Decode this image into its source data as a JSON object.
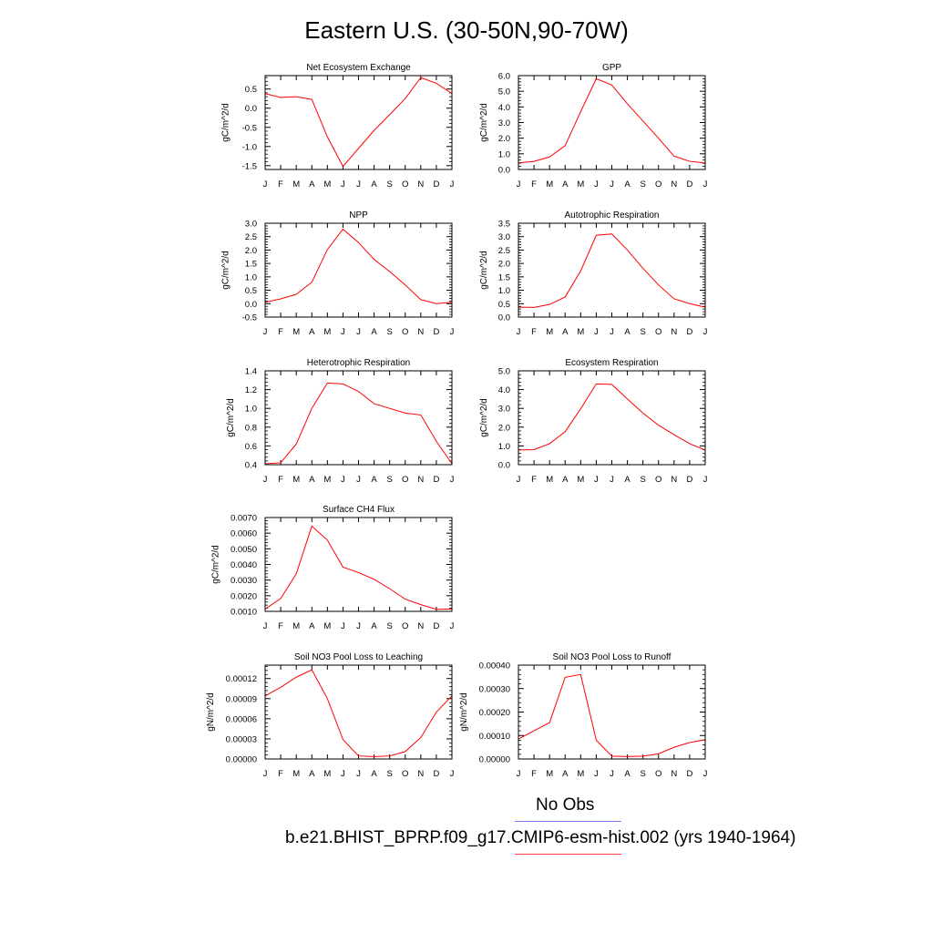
{
  "title": "Eastern U.S. (30-50N,90-70W)",
  "legend": [
    {
      "label": "No Obs",
      "color": "#8080ff"
    },
    {
      "label": "b.e21.BHIST_BPRP.f09_g17.CMIP6-esm-hist.002 (yrs 1940-1964)",
      "color": "#ff4040"
    }
  ],
  "months": [
    "J",
    "F",
    "M",
    "A",
    "M",
    "J",
    "J",
    "A",
    "S",
    "O",
    "N",
    "D",
    "J"
  ],
  "chart_data": [
    {
      "type": "line",
      "title": "Net Ecosystem Exchange",
      "ylabel": "gC/m^2/d",
      "ylim": [
        -1.6,
        0.85
      ],
      "yticks": [
        0.5,
        0.0,
        -0.5,
        -1.0,
        -1.5
      ],
      "yticklabels": [
        "0.5",
        "0.0",
        "-0.5",
        "-1.0",
        "-1.5"
      ],
      "series": [
        {
          "color": "#ff0000",
          "values": [
            0.38,
            0.28,
            0.3,
            0.23,
            -0.75,
            -1.52,
            -1.05,
            -0.58,
            -0.17,
            0.25,
            0.8,
            0.65,
            0.38
          ]
        }
      ]
    },
    {
      "type": "line",
      "title": "GPP",
      "ylabel": "gC/m^2/d",
      "ylim": [
        0.0,
        6.0
      ],
      "yticks": [
        0.0,
        1.0,
        2.0,
        3.0,
        4.0,
        5.0,
        6.0
      ],
      "yticklabels": [
        "0.0",
        "1.0",
        "2.0",
        "3.0",
        "4.0",
        "5.0",
        "6.0"
      ],
      "series": [
        {
          "color": "#ff0000",
          "values": [
            0.42,
            0.52,
            0.8,
            1.52,
            3.7,
            5.8,
            5.4,
            4.2,
            3.1,
            2.0,
            0.85,
            0.52,
            0.42
          ]
        }
      ]
    },
    {
      "type": "line",
      "title": "NPP",
      "ylabel": "gC/m^2/d",
      "ylim": [
        -0.5,
        3.0
      ],
      "yticks": [
        3.0,
        2.5,
        2.0,
        1.5,
        1.0,
        0.5,
        0.0,
        -0.5
      ],
      "yticklabels": [
        "3.0",
        "2.5",
        "2.0",
        "1.5",
        "1.0",
        "0.5",
        "0.0",
        "-0.5"
      ],
      "series": [
        {
          "color": "#ff0000",
          "values": [
            0.05,
            0.18,
            0.35,
            0.8,
            2.02,
            2.78,
            2.28,
            1.65,
            1.2,
            0.7,
            0.15,
            0.0,
            0.05
          ]
        }
      ]
    },
    {
      "type": "line",
      "title": "Autotrophic Respiration",
      "ylabel": "gC/m^2/d",
      "ylim": [
        0.0,
        3.5
      ],
      "yticks": [
        3.5,
        3.0,
        2.5,
        2.0,
        1.5,
        1.0,
        0.5,
        0.0
      ],
      "yticklabels": [
        "3.5",
        "3.0",
        "2.5",
        "2.0",
        "1.5",
        "1.0",
        "0.5",
        "0.0"
      ],
      "series": [
        {
          "color": "#ff0000",
          "values": [
            0.37,
            0.36,
            0.47,
            0.75,
            1.72,
            3.05,
            3.1,
            2.5,
            1.82,
            1.2,
            0.68,
            0.5,
            0.37
          ]
        }
      ]
    },
    {
      "type": "line",
      "title": "Heterotrophic Respiration",
      "ylabel": "gC/m^2/d",
      "ylim": [
        0.4,
        1.4
      ],
      "yticks": [
        1.4,
        1.2,
        1.0,
        0.8,
        0.6,
        0.4
      ],
      "yticklabels": [
        "1.4",
        "1.2",
        "1.0",
        "0.8",
        "0.6",
        "0.4"
      ],
      "series": [
        {
          "color": "#ff0000",
          "values": [
            0.41,
            0.42,
            0.62,
            1.0,
            1.27,
            1.26,
            1.18,
            1.05,
            1.0,
            0.95,
            0.93,
            0.65,
            0.41
          ]
        }
      ]
    },
    {
      "type": "line",
      "title": "Ecosystem Respiration",
      "ylabel": "gC/m^2/d",
      "ylim": [
        0.0,
        5.0
      ],
      "yticks": [
        5.0,
        4.0,
        3.0,
        2.0,
        1.0,
        0.0
      ],
      "yticklabels": [
        "5.0",
        "4.0",
        "3.0",
        "2.0",
        "1.0",
        "0.0"
      ],
      "series": [
        {
          "color": "#ff0000",
          "values": [
            0.78,
            0.8,
            1.12,
            1.76,
            2.98,
            4.3,
            4.28,
            3.5,
            2.75,
            2.1,
            1.6,
            1.12,
            0.78
          ]
        }
      ]
    },
    {
      "type": "line",
      "title": "Surface CH4 Flux",
      "ylabel": "gC/m^2/d",
      "ylim": [
        0.001,
        0.007
      ],
      "yticks": [
        0.007,
        0.006,
        0.005,
        0.004,
        0.003,
        0.002,
        0.001
      ],
      "yticklabels": [
        "0.0070",
        "0.0060",
        "0.0050",
        "0.0040",
        "0.0030",
        "0.0020",
        "0.0010"
      ],
      "series": [
        {
          "color": "#ff0000",
          "values": [
            0.00115,
            0.00182,
            0.0034,
            0.00645,
            0.00555,
            0.00383,
            0.00348,
            0.00305,
            0.00245,
            0.00178,
            0.00143,
            0.00113,
            0.00115
          ]
        }
      ]
    },
    {
      "type": "line",
      "title": "Soil NO3 Pool Loss to Leaching",
      "ylabel": "gN/m^2/d",
      "ylim": [
        0.0,
        0.00014
      ],
      "yticks": [
        0.00012,
        9e-05,
        6e-05,
        3e-05,
        0.0
      ],
      "yticklabels": [
        "0.00012",
        "0.00009",
        "0.00006",
        "0.00003",
        "0.00000"
      ],
      "series": [
        {
          "color": "#ff0000",
          "values": [
            9.4e-05,
            0.000107,
            0.000122,
            0.000133,
            9e-05,
            2.9e-05,
            4.5e-06,
            3.5e-06,
            4.5e-06,
            1.1e-05,
            3.2e-05,
            7e-05,
            9.4e-05
          ]
        }
      ]
    },
    {
      "type": "line",
      "title": "Soil NO3 Pool Loss to Runoff",
      "ylabel": "gN/m^2/d",
      "ylim": [
        0.0,
        0.0004
      ],
      "yticks": [
        0.0004,
        0.0003,
        0.0002,
        0.0001,
        0.0
      ],
      "yticklabels": [
        "0.00040",
        "0.00030",
        "0.00020",
        "0.00010",
        "0.00000"
      ],
      "series": [
        {
          "color": "#ff0000",
          "values": [
            8.5e-05,
            0.00012,
            0.000155,
            0.000348,
            0.00036,
            8e-05,
            1.2e-05,
            1e-05,
            1.2e-05,
            2.2e-05,
            5e-05,
            7e-05,
            8.2e-05
          ]
        }
      ]
    }
  ]
}
